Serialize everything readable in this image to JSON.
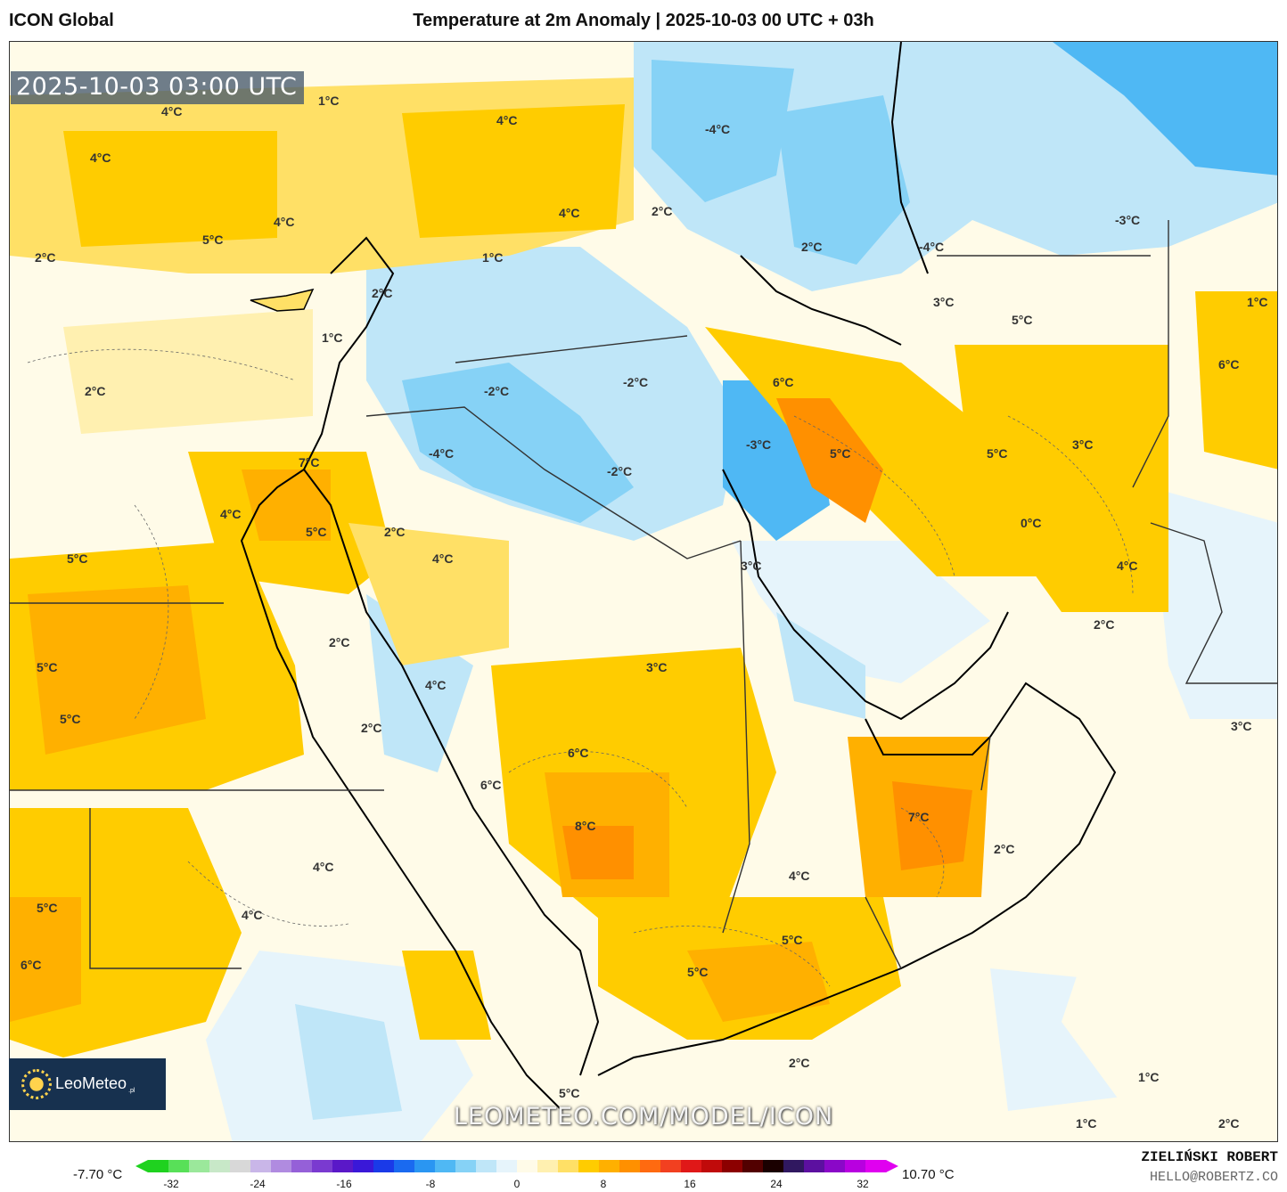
{
  "header": {
    "model": "ICON Global",
    "title": "Temperature at 2m Anomaly | 2025-10-03 00 UTC + 03h"
  },
  "map": {
    "timestamp": "2025-10-03 03:00 UTC",
    "watermark": "LEOMETEO.COM/MODEL/ICON",
    "logo_text": "LeoMeteo",
    "logo_sub": ".pl",
    "labels": [
      "1°C",
      "4°C",
      "4°C",
      "4°C",
      "4°C",
      "4°C",
      "-4°C",
      "5°C",
      "2°C",
      "2°C",
      "-3°C",
      "-4°C",
      "2°C",
      "1°C",
      "2°C",
      "3°C",
      "1°C",
      "1°C",
      "5°C",
      "6°C",
      "2°C",
      "-2°C",
      "-2°C",
      "6°C",
      "5°C",
      "3°C",
      "-3°C",
      "-4°C",
      "-2°C",
      "7°C",
      "5°C",
      "4°C",
      "2°C",
      "0°C",
      "5°C",
      "4°C",
      "4°C",
      "3°C",
      "2°C",
      "2°C",
      "5°C",
      "5°C",
      "3°C",
      "4°C",
      "5°C",
      "6°C",
      "7°C",
      "6°C",
      "2°C",
      "8°C",
      "3°C",
      "4°C",
      "4°C",
      "5°C",
      "5°C",
      "4°C",
      "6°C",
      "2°C",
      "5°C",
      "2°C",
      "1°C",
      "5°C",
      "1°C",
      "2°C"
    ]
  },
  "colorbar": {
    "min_label": "-7.70 °C",
    "max_label": "10.70 °C",
    "ticks": [
      "-32",
      "-24",
      "-16",
      "-8",
      "0",
      "8",
      "16",
      "24",
      "32"
    ],
    "colors": [
      "#1fd21f",
      "#58e058",
      "#9be89b",
      "#c8e8c8",
      "#d8d8d8",
      "#c9b6e8",
      "#b08be0",
      "#9560d8",
      "#7a3ad0",
      "#5a18c8",
      "#3a18d8",
      "#1a3ae8",
      "#1a6af0",
      "#2a96f2",
      "#4fb8f4",
      "#86d2f6",
      "#bfe6f8",
      "#e6f4fb",
      "#fffbe8",
      "#fff0b0",
      "#ffe066",
      "#ffcc00",
      "#ffb000",
      "#ff9000",
      "#ff6a10",
      "#f24020",
      "#e01818",
      "#c00a0a",
      "#8c0000",
      "#520000",
      "#1a0000",
      "#301860",
      "#5c10a0",
      "#8a08c8",
      "#b800e0",
      "#e000f0"
    ]
  },
  "footer": {
    "author": "ZIELIŃSKI ROBERT",
    "email": "HELLO@ROBERTZ.CO"
  }
}
